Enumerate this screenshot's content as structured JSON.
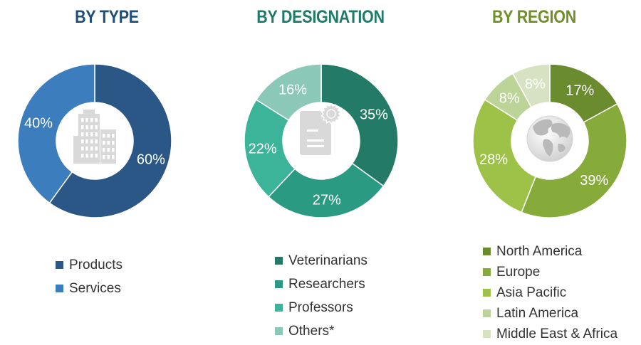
{
  "chart_data": [
    {
      "type": "pie",
      "title": "BY TYPE",
      "title_color": "#1f4e79",
      "categories": [
        "Products",
        "Services"
      ],
      "values": [
        60,
        40
      ],
      "labels": [
        "60%",
        "40%"
      ],
      "colors": [
        "#2b5787",
        "#3c7dbd"
      ],
      "center_icon": "buildings-icon",
      "legend_position": "bottom"
    },
    {
      "type": "pie",
      "title": "BY DESIGNATION",
      "title_color": "#1f7a6a",
      "categories": [
        "Veterinarians",
        "Researchers",
        "Professors",
        "Others*"
      ],
      "values": [
        35,
        27,
        22,
        16
      ],
      "labels": [
        "35%",
        "27%",
        "22%",
        "16%"
      ],
      "colors": [
        "#237a66",
        "#2b9a82",
        "#3bb49a",
        "#8cc8b8"
      ],
      "center_icon": "certificate-document-icon",
      "legend_position": "bottom"
    },
    {
      "type": "pie",
      "title": "BY REGION",
      "title_color": "#6f8f2a",
      "categories": [
        "North America",
        "Europe",
        "Asia Pacific",
        "Latin America",
        "Middle East & Africa"
      ],
      "values": [
        17,
        39,
        28,
        8,
        8
      ],
      "labels": [
        "17%",
        "39%",
        "28%",
        "8%",
        "8%"
      ],
      "colors": [
        "#6a8c2f",
        "#86ab3a",
        "#9ec247",
        "#bcd497",
        "#d7e2c2"
      ],
      "center_icon": "globe-icon",
      "legend_position": "bottom"
    }
  ]
}
